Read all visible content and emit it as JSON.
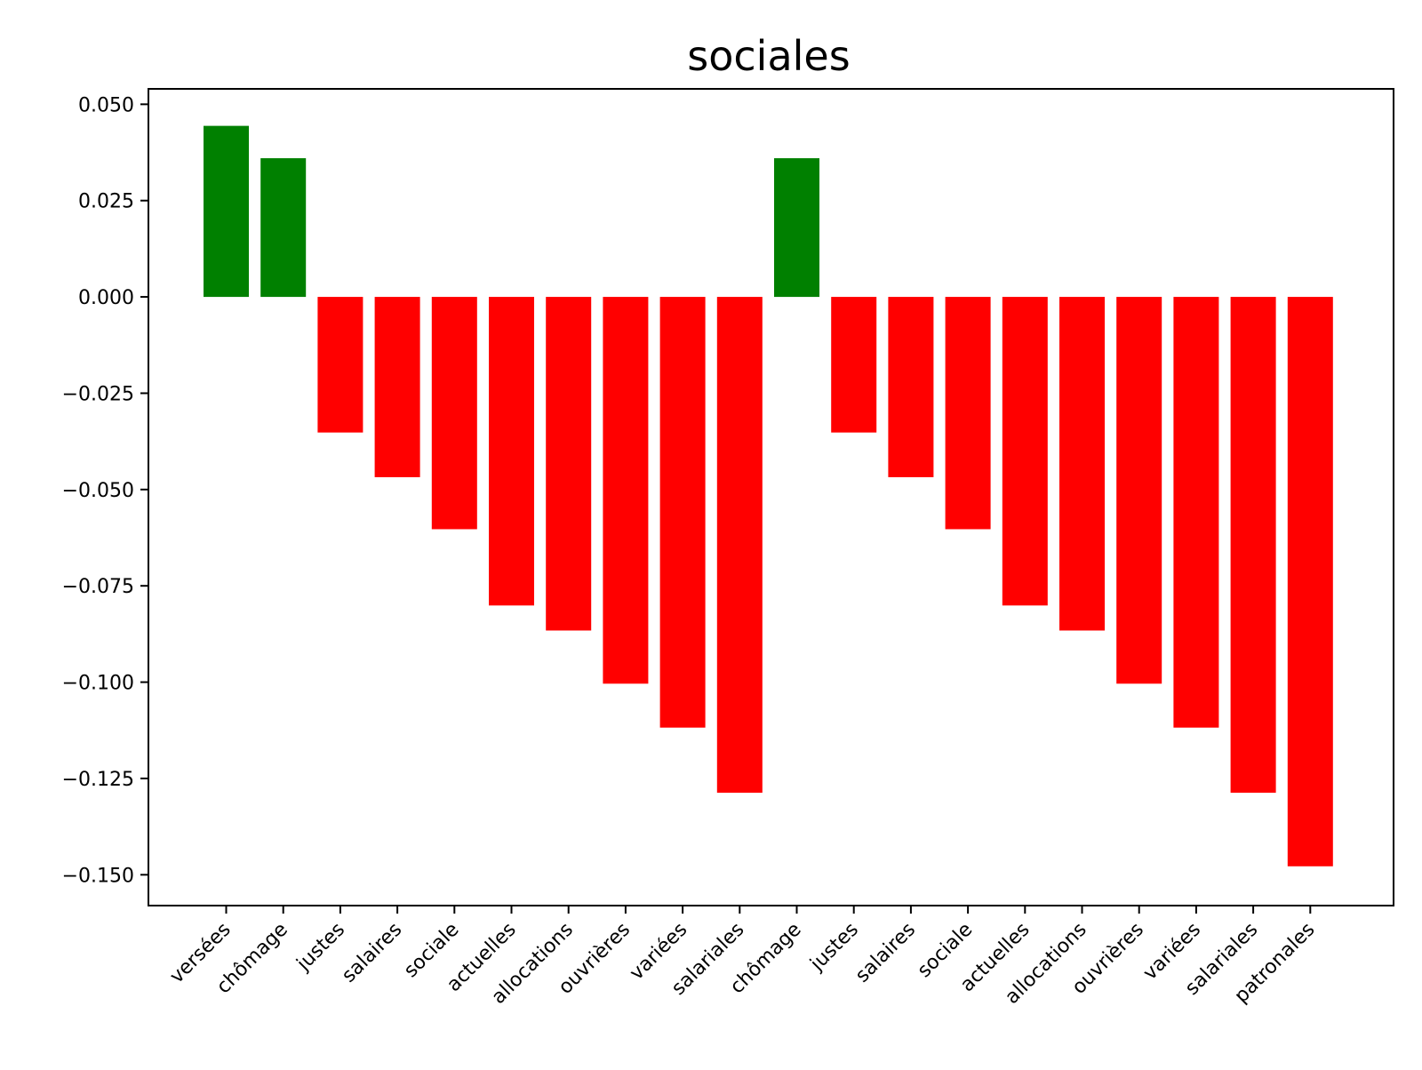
{
  "chart_data": {
    "type": "bar",
    "title": "sociales",
    "xlabel": "",
    "ylabel": "",
    "categories": [
      "versées",
      "chômage",
      "justes",
      "salaires",
      "sociale",
      "actuelles",
      "allocations",
      "ouvrières",
      "variées",
      "salariales",
      "chômage",
      "justes",
      "salaires",
      "sociale",
      "actuelles",
      "allocations",
      "ouvrières",
      "variées",
      "salariales",
      "patronales"
    ],
    "values": [
      0.0444,
      0.036,
      -0.0352,
      -0.0468,
      -0.0603,
      -0.0801,
      -0.0866,
      -0.1004,
      -0.1118,
      -0.1287,
      0.036,
      -0.0352,
      -0.0468,
      -0.0603,
      -0.0801,
      -0.0866,
      -0.1004,
      -0.1118,
      -0.1287,
      -0.1478
    ],
    "ylim": [
      -0.158,
      0.054
    ],
    "yticks": [
      0.05,
      0.025,
      0.0,
      -0.025,
      -0.05,
      -0.075,
      -0.1,
      -0.125,
      -0.15
    ],
    "ytick_labels": [
      "0.050",
      "0.025",
      "0.000",
      "−0.025",
      "−0.050",
      "−0.075",
      "−0.100",
      "−0.125",
      "−0.150"
    ],
    "colors": {
      "positive": "#008000",
      "negative": "#ff0000"
    },
    "grid": false,
    "legend": "none"
  }
}
